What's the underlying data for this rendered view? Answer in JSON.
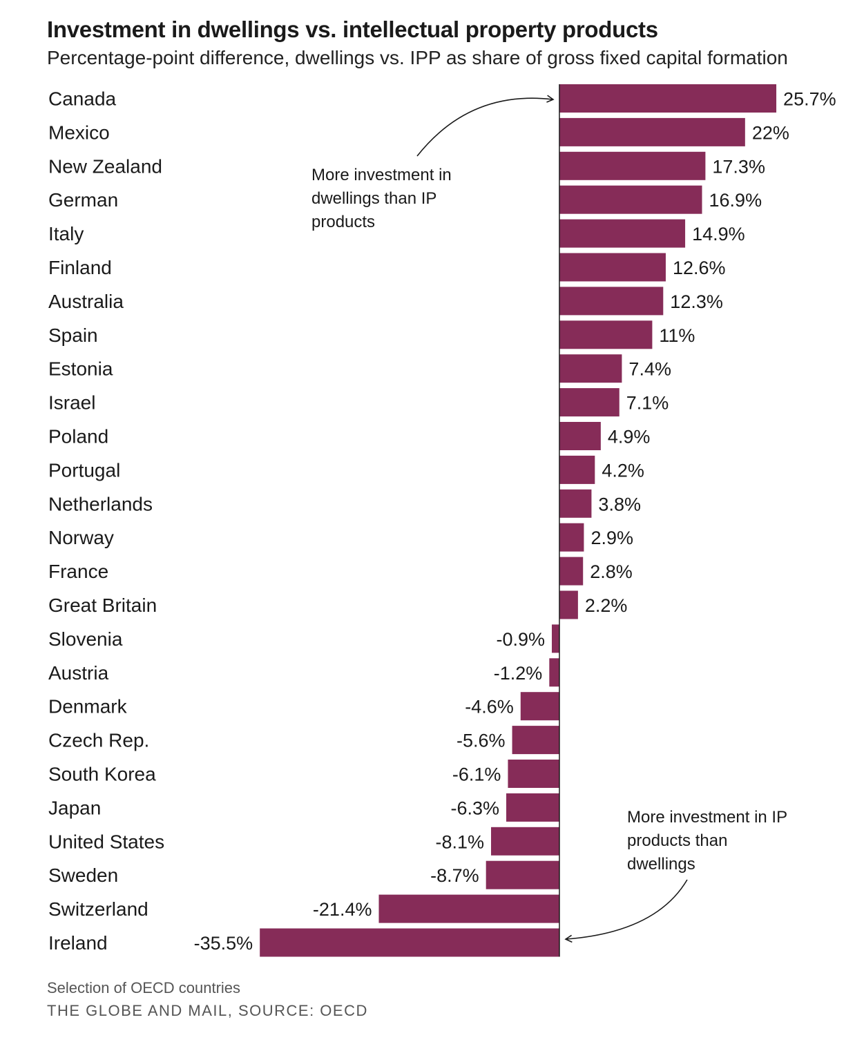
{
  "chart_data": {
    "type": "bar",
    "orientation": "horizontal",
    "title": "Investment in dwellings vs. intellectual property products",
    "subtitle": "Percentage-point difference, dwellings vs. IPP as share of gross fixed capital formation",
    "categories": [
      "Canada",
      "Mexico",
      "New Zealand",
      "German",
      "Italy",
      "Finland",
      "Australia",
      "Spain",
      "Estonia",
      "Israel",
      "Poland",
      "Portugal",
      "Netherlands",
      "Norway",
      "France",
      "Great Britain",
      "Slovenia",
      "Austria",
      "Denmark",
      "Czech Rep.",
      "South Korea",
      "Japan",
      "United States",
      "Sweden",
      "Switzerland",
      "Ireland"
    ],
    "values": [
      25.7,
      22,
      17.3,
      16.9,
      14.9,
      12.6,
      12.3,
      11,
      7.4,
      7.1,
      4.9,
      4.2,
      3.8,
      2.9,
      2.8,
      2.2,
      -0.9,
      -1.2,
      -4.6,
      -5.6,
      -6.1,
      -6.3,
      -8.1,
      -8.7,
      -21.4,
      -35.5
    ],
    "value_labels": [
      "25.7%",
      "22%",
      "17.3%",
      "16.9%",
      "14.9%",
      "12.6%",
      "12.3%",
      "11%",
      "7.4%",
      "7.1%",
      "4.9%",
      "4.2%",
      "3.8%",
      "2.9%",
      "2.8%",
      "2.2%",
      "-0.9%",
      "-1.2%",
      "-4.6%",
      "-5.6%",
      "-6.1%",
      "-6.3%",
      "-8.1%",
      "-8.7%",
      "-21.4%",
      "-35.5%"
    ],
    "xlim": [
      -35.5,
      25.7
    ],
    "bar_color": "#862c58",
    "annotations": [
      {
        "text": [
          "More investment in",
          "dwellings than IP",
          "products"
        ],
        "points_to": "Canada"
      },
      {
        "text": [
          "More investment in IP",
          "products than",
          "dwellings"
        ],
        "points_to": "Ireland"
      }
    ]
  },
  "footnote": "Selection of OECD countries",
  "source": "THE GLOBE AND MAIL, SOURCE: OECD"
}
